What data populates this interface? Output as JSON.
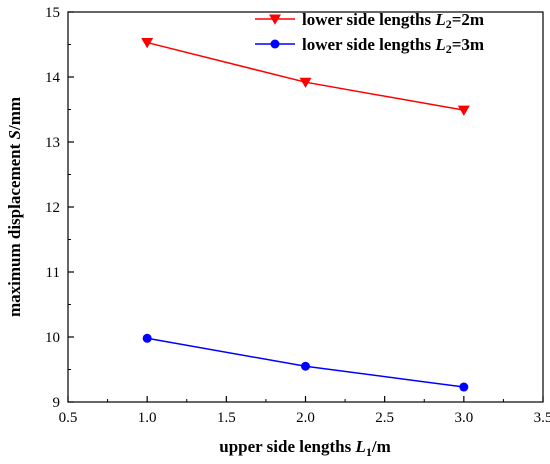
{
  "chart_data": {
    "type": "line",
    "xlabel": {
      "pre": "upper side lengths ",
      "var": "L",
      "sub": "1",
      "post": "/m"
    },
    "ylabel": {
      "pre": "maximum displacement ",
      "var": "S",
      "post": "/mm"
    },
    "xlim": [
      0.5,
      3.5
    ],
    "ylim": [
      9,
      15
    ],
    "xticks": [
      "0.5",
      "1.0",
      "1.5",
      "2.0",
      "2.5",
      "3.0",
      "3.5"
    ],
    "yticks": [
      "9",
      "10",
      "11",
      "12",
      "13",
      "14",
      "15"
    ],
    "grid": false,
    "legend_position": "top-right",
    "series": [
      {
        "legend": {
          "pre": "lower side lengths ",
          "var": "L",
          "sub": "2",
          "post": "=2m"
        },
        "color": "#ff0000",
        "marker": "triangle-down",
        "x": [
          1.0,
          2.0,
          3.0
        ],
        "y": [
          14.53,
          13.92,
          13.49
        ]
      },
      {
        "legend": {
          "pre": "lower side lengths ",
          "var": "L",
          "sub": "2",
          "post": "=3m"
        },
        "color": "#0000ff",
        "marker": "circle",
        "x": [
          1.0,
          2.0,
          3.0
        ],
        "y": [
          9.98,
          9.55,
          9.23
        ]
      }
    ]
  }
}
